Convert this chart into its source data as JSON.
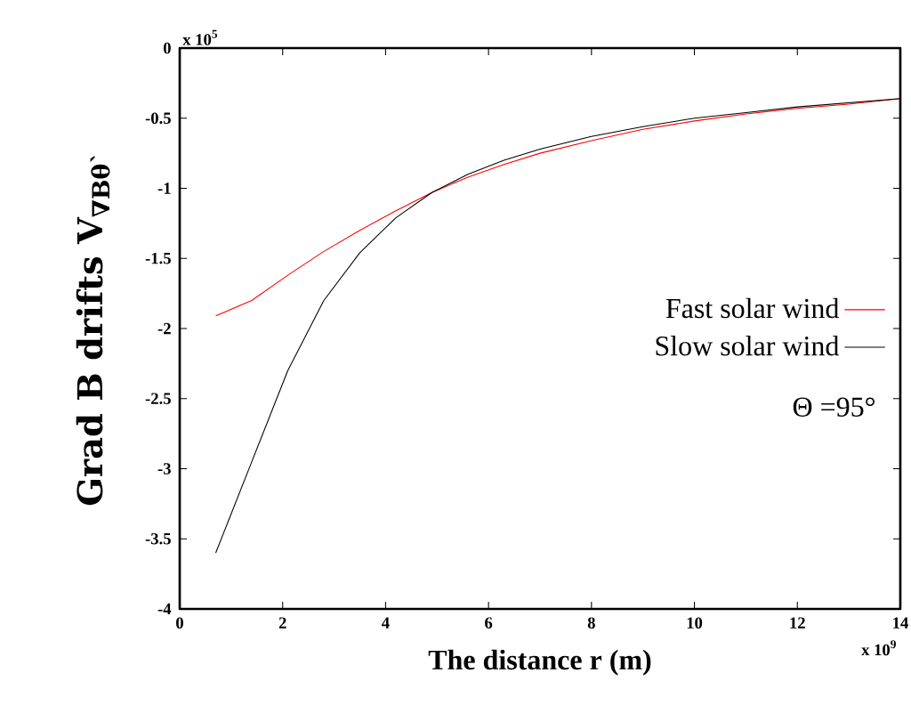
{
  "chart_data": {
    "type": "line",
    "xlabel": "The distance r (m)",
    "ylabel": "Grad B drifts  V$_{∇Bθ`}$",
    "x": [
      0.7,
      1.4,
      2.1,
      2.8,
      3.5,
      4.2,
      4.9,
      5.6,
      6.3,
      7,
      8,
      9,
      10,
      11,
      12,
      13,
      14
    ],
    "series": [
      {
        "name": "Fast solar wind",
        "color": "#ff0000",
        "values": [
          -1.91,
          -1.8,
          -1.62,
          -1.45,
          -1.3,
          -1.16,
          -1.03,
          -0.92,
          -0.83,
          -0.75,
          -0.66,
          -0.58,
          -0.52,
          -0.47,
          -0.43,
          -0.4,
          -0.36
        ]
      },
      {
        "name": "Slow solar wind",
        "color": "#000000",
        "values": [
          -3.6,
          -2.95,
          -2.3,
          -1.8,
          -1.46,
          -1.21,
          -1.03,
          -0.9,
          -0.8,
          -0.72,
          -0.63,
          -0.56,
          -0.5,
          -0.46,
          -0.42,
          -0.39,
          -0.36
        ]
      }
    ],
    "xlim": [
      0,
      14
    ],
    "xticks": [
      0,
      2,
      4,
      6,
      8,
      10,
      12,
      14
    ],
    "ylim": [
      -4,
      0
    ],
    "yticks": [
      -4,
      -3.5,
      -3,
      -2.5,
      -2,
      -1.5,
      -1,
      -0.5,
      0
    ],
    "annotations": [
      "x 10$^{5}$",
      "x 10$^{9}$",
      "Θ =95°"
    ],
    "legend": "right",
    "grid": false,
    "marker": "none",
    "line_style": "solid"
  }
}
